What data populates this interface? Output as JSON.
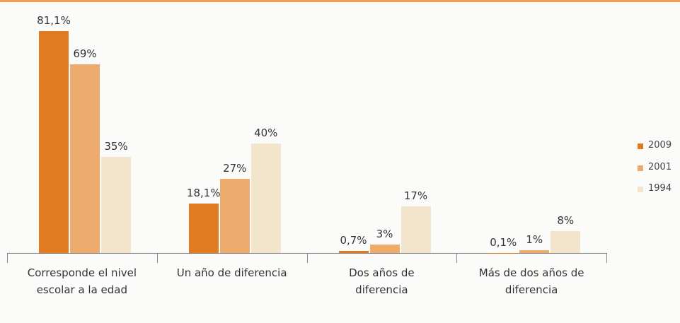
{
  "chart_data": {
    "type": "bar",
    "categories": [
      "Corresponde el nivel escolar a la edad",
      "Un año de diferencia",
      "Dos años de diferencia",
      "Más de dos años de diferencia"
    ],
    "series": [
      {
        "name": "2009",
        "color": "#e07b24",
        "values": [
          81.1,
          18.1,
          0.7,
          0.1
        ],
        "value_labels": [
          "81,1%",
          "18,1%",
          "0,7%",
          "0,1%"
        ]
      },
      {
        "name": "2001",
        "color": "#eeab6e",
        "values": [
          69,
          27,
          3,
          1
        ],
        "value_labels": [
          "69%",
          "27%",
          "3%",
          "1%"
        ]
      },
      {
        "name": "1994",
        "color": "#f3e5cc",
        "values": [
          35,
          40,
          17,
          8
        ],
        "value_labels": [
          "35%",
          "40%",
          "17%",
          "8%"
        ]
      }
    ],
    "legend": "right"
  }
}
